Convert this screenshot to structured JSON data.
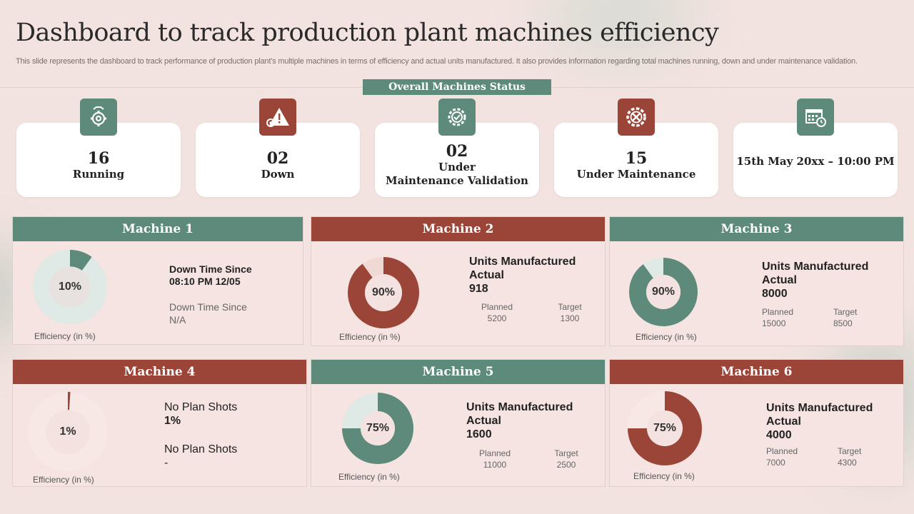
{
  "header": {
    "title": "Dashboard to track production plant machines efficiency",
    "subtitle": "This slide represents the dashboard to track performance of production plant’s multiple machines in terms of efficiency and actual units manufactured. It also provides information regarding total machines running, down and under maintenance validation."
  },
  "status": {
    "banner": "Overall Machines Status",
    "cards": [
      {
        "number": "16",
        "label": "Running",
        "icon": "gear-worker-icon"
      },
      {
        "number": "02",
        "label": "Down",
        "icon": "warning-gear-icon"
      },
      {
        "number": "02",
        "label_line1": "Under",
        "label_line2": "Maintenance Validation",
        "icon": "gear-check-icon"
      },
      {
        "number": "15",
        "label": "Under Maintenance",
        "icon": "wrench-gear-icon"
      },
      {
        "datetime": "15th May 20xx – 10:00 PM",
        "icon": "calendar-clock-icon"
      }
    ]
  },
  "colors": {
    "green": "#5d8a7a",
    "red": "#9b4538",
    "track_light": "#f0d9d5",
    "track_green": "#dfe9e5"
  },
  "machines": [
    {
      "name": "Machine 1",
      "percent_label": "10%",
      "efficiency": 10,
      "efficiency_label": "Efficiency (in %)",
      "downtime_line1": "Down Time Since",
      "downtime_line2": "08:10 PM 12/05",
      "downtime2_line1": "Down Time Since",
      "downtime2_line2": "N/A"
    },
    {
      "name": "Machine 2",
      "percent_label": "90%",
      "efficiency": 90,
      "efficiency_label": "Efficiency (in %)",
      "units_line1": "Units Manufactured",
      "units_line2": "Actual",
      "actual": "918",
      "planned_label": "Planned",
      "planned": "5200",
      "target_label": "Target",
      "target": "1300"
    },
    {
      "name": "Machine 3",
      "percent_label": "90%",
      "efficiency": 90,
      "efficiency_label": "Efficiency (in %)",
      "units_line1": "Units Manufactured",
      "units_line2": "Actual",
      "actual": "8000",
      "planned_label": "Planned",
      "planned": "15000",
      "target_label": "Target",
      "target": "8500"
    },
    {
      "name": "Machine 4",
      "percent_label": "1%",
      "efficiency": 1,
      "efficiency_label": "Efficiency (in %)",
      "np1_line1": "No Plan Shots",
      "np1_line2": "1%",
      "np2_line1": "No Plan Shots",
      "np2_line2": "-"
    },
    {
      "name": "Machine 5",
      "percent_label": "75%",
      "efficiency": 75,
      "efficiency_label": "Efficiency (in %)",
      "units_line1": "Units Manufactured",
      "units_line2": "Actual",
      "actual": "1600",
      "planned_label": "Planned",
      "planned": "11000",
      "target_label": "Target",
      "target": "2500"
    },
    {
      "name": "Machine 6",
      "percent_label": "75%",
      "efficiency": 75,
      "efficiency_label": "Efficiency (in %)",
      "units_line1": "Units Manufactured",
      "units_line2": "Actual",
      "actual": "4000",
      "planned_label": "Planned",
      "planned": "7000",
      "target_label": "Target",
      "target": "4300"
    }
  ]
}
